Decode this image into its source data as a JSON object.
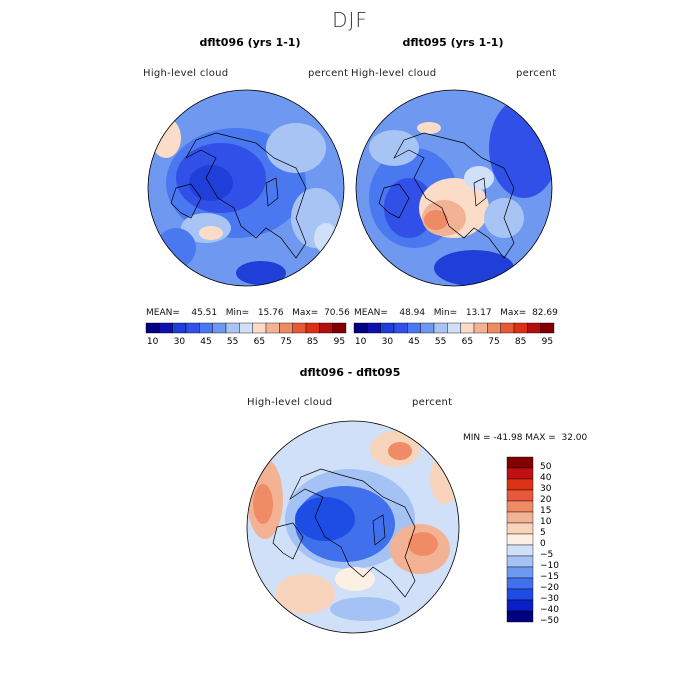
{
  "season": "DJF",
  "colors": {
    "levels12": [
      "#000080",
      "#1010b0",
      "#1f3fd8",
      "#3050e8",
      "#4a78f0",
      "#6f98f0",
      "#a8c4f4",
      "#d0e0f8",
      "#fadcc8",
      "#f4b294",
      "#ee8a64",
      "#e8583a",
      "#dc2e14",
      "#b41010",
      "#800000"
    ],
    "diff": [
      "#000080",
      "#0a1ec8",
      "#1e4de6",
      "#4070ec",
      "#6f98f0",
      "#a4c2f4",
      "#d0e0f8",
      "#fcf0e4",
      "#f8d4bc",
      "#f4b294",
      "#ef8c66",
      "#e8583a",
      "#de3216",
      "#c01010",
      "#800000"
    ]
  },
  "panels": [
    {
      "title": "dflt096 (yrs 1-1)",
      "left_label": "High-level cloud",
      "right_label": "percent",
      "stats": {
        "mean_label": "MEAN=",
        "mean": "45.51",
        "min_label": "Min=",
        "min": "15.76",
        "max_label": "Max=",
        "max": "70.56"
      },
      "ticks": [
        "10",
        "30",
        "45",
        "55",
        "65",
        "75",
        "85",
        "95"
      ]
    },
    {
      "title": "dflt095 (yrs 1-1)",
      "left_label": "High-level cloud",
      "right_label": "percent",
      "stats": {
        "mean_label": "MEAN=",
        "mean": "48.94",
        "min_label": "Min=",
        "min": "13.17",
        "max_label": "Max=",
        "max": "82.69"
      },
      "ticks": [
        "10",
        "30",
        "45",
        "55",
        "65",
        "75",
        "85",
        "95"
      ]
    }
  ],
  "diff_panel": {
    "title": "dflt096 - dflt095",
    "left_label": "High-level cloud",
    "right_label": "percent",
    "minmax": "MIN = -41.98 MAX =  32.00",
    "ticks": [
      "50",
      "40",
      "30",
      "20",
      "15",
      "10",
      "5",
      "0",
      "−5",
      "−10",
      "−15",
      "−20",
      "−30",
      "−40",
      "−50"
    ]
  }
}
